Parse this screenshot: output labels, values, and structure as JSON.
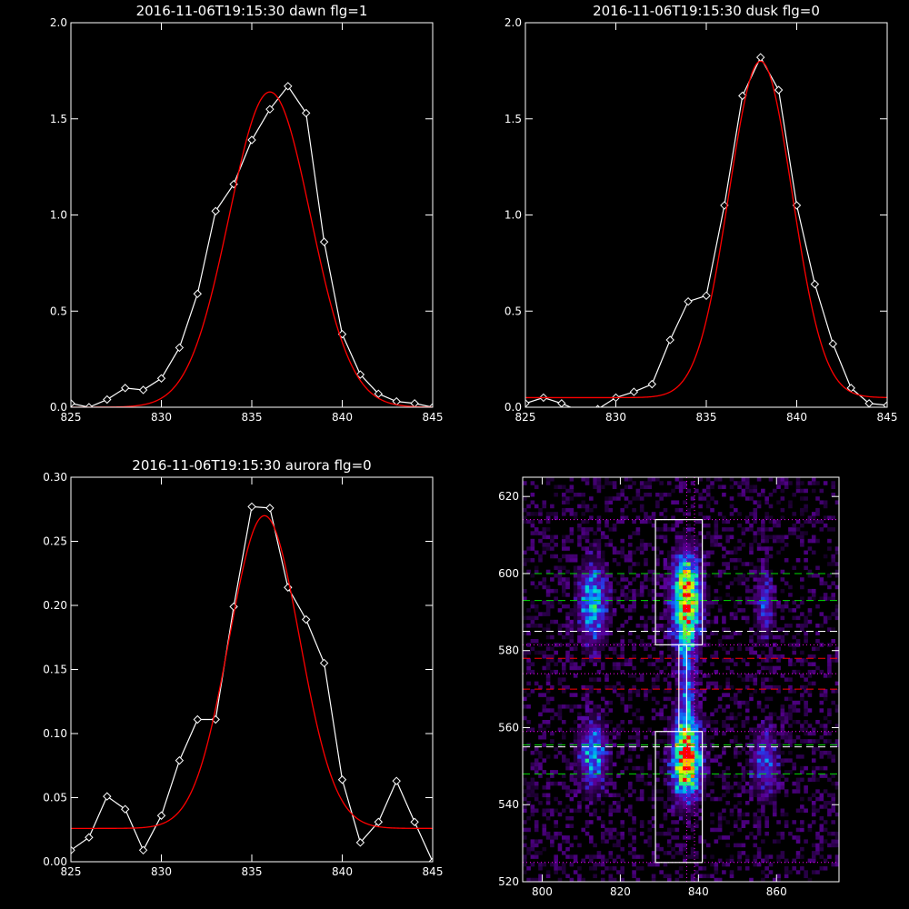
{
  "chart_data": [
    {
      "type": "line",
      "title": "2016-11-06T19:15:30 dawn flg=1",
      "xlim": [
        825,
        845
      ],
      "ylim": [
        0,
        2.0
      ],
      "xticks": [
        "825",
        "830",
        "835",
        "840",
        "845"
      ],
      "yticks": [
        "0.0",
        "0.5",
        "1.0",
        "1.5",
        "2.0"
      ],
      "series": [
        {
          "color": "#ffffff",
          "marker": "diamond",
          "x": [
            825,
            826,
            827,
            828,
            829,
            830,
            831,
            832,
            833,
            834,
            835,
            836,
            837,
            838,
            839,
            840,
            841,
            842,
            843,
            844,
            845
          ],
          "y": [
            0.02,
            0.0,
            0.04,
            0.1,
            0.09,
            0.15,
            0.31,
            0.59,
            1.02,
            1.16,
            1.39,
            1.55,
            1.67,
            1.53,
            0.86,
            0.38,
            0.17,
            0.07,
            0.03,
            0.02,
            0.0
          ]
        },
        {
          "color": "#ff0000",
          "fit": {
            "a": 1.64,
            "mu": 836.0,
            "sigma": 2.25,
            "c": 0.0
          }
        }
      ]
    },
    {
      "type": "line",
      "title": "2016-11-06T19:15:30 dusk flg=0",
      "xlim": [
        825,
        845
      ],
      "ylim": [
        0,
        2.0
      ],
      "xticks": [
        "825",
        "830",
        "835",
        "840",
        "845"
      ],
      "yticks": [
        "0.0",
        "0.5",
        "1.0",
        "1.5",
        "2.0"
      ],
      "series": [
        {
          "color": "#ffffff",
          "marker": "diamond",
          "x": [
            825,
            826,
            827,
            828,
            829,
            830,
            831,
            832,
            833,
            834,
            835,
            836,
            837,
            838,
            839,
            840,
            841,
            842,
            843,
            844,
            845
          ],
          "y": [
            0.02,
            0.05,
            0.02,
            -0.02,
            -0.01,
            0.05,
            0.08,
            0.12,
            0.35,
            0.55,
            0.58,
            1.05,
            1.62,
            1.82,
            1.65,
            1.05,
            0.64,
            0.33,
            0.1,
            0.02,
            0.01
          ]
        },
        {
          "color": "#ff0000",
          "fit": {
            "a": 1.75,
            "mu": 838.0,
            "sigma": 1.75,
            "c": 0.05
          }
        }
      ]
    },
    {
      "type": "line",
      "title": "2016-11-06T19:15:30 aurora flg=0",
      "xlim": [
        825,
        845
      ],
      "ylim": [
        0,
        0.3
      ],
      "xticks": [
        "825",
        "830",
        "835",
        "840",
        "845"
      ],
      "yticks": [
        "0.00",
        "0.05",
        "0.10",
        "0.15",
        "0.20",
        "0.25",
        "0.30"
      ],
      "series": [
        {
          "color": "#ffffff",
          "marker": "diamond",
          "x": [
            825,
            826,
            827,
            828,
            829,
            830,
            831,
            832,
            833,
            834,
            835,
            836,
            837,
            838,
            839,
            840,
            841,
            842,
            843,
            844,
            845
          ],
          "y": [
            0.009,
            0.019,
            0.051,
            0.041,
            0.009,
            0.036,
            0.079,
            0.111,
            0.111,
            0.199,
            0.277,
            0.276,
            0.214,
            0.189,
            0.155,
            0.064,
            0.015,
            0.031,
            0.063,
            0.031,
            0.0
          ]
        },
        {
          "color": "#ff0000",
          "fit": {
            "a": 0.244,
            "mu": 835.7,
            "sigma": 1.95,
            "c": 0.026
          }
        }
      ]
    },
    {
      "type": "heatmap",
      "title": "",
      "xlim": [
        795,
        876
      ],
      "ylim": [
        520,
        625
      ],
      "xticks": [
        "800",
        "820",
        "840",
        "860"
      ],
      "yticks": [
        "520",
        "540",
        "560",
        "580",
        "600",
        "620"
      ],
      "blobs": [
        {
          "x": 813,
          "y": 592,
          "w": 2.5,
          "h": 7,
          "amp": 0.55
        },
        {
          "x": 837,
          "y": 593,
          "w": 2.5,
          "h": 8,
          "amp": 1.0
        },
        {
          "x": 857,
          "y": 592,
          "w": 1.5,
          "h": 6,
          "amp": 0.35
        },
        {
          "x": 813,
          "y": 553,
          "w": 2.5,
          "h": 6,
          "amp": 0.5
        },
        {
          "x": 837,
          "y": 552,
          "w": 2.5,
          "h": 7,
          "amp": 1.0
        },
        {
          "x": 857,
          "y": 551,
          "w": 2.5,
          "h": 6,
          "amp": 0.35
        },
        {
          "x": 837,
          "y": 570,
          "w": 1.5,
          "h": 10,
          "amp": 0.35
        }
      ],
      "boxes": [
        {
          "x0": 829,
          "x1": 841,
          "y0": 581.5,
          "y1": 614,
          "color": "#ffffff"
        },
        {
          "x0": 829,
          "x1": 841,
          "y0": 525,
          "y1": 559,
          "color": "#ffffff"
        },
        {
          "x0": 835,
          "x1": 837,
          "y0": 559,
          "y1": 581.5,
          "color": "#ffffff"
        }
      ],
      "hlines": [
        {
          "y": 614,
          "color": "#ff00ff",
          "style": "dotted"
        },
        {
          "y": 600,
          "color": "#00dd00",
          "style": "dashed"
        },
        {
          "y": 593,
          "color": "#00dd00",
          "style": "dashed"
        },
        {
          "y": 585,
          "color": "#ffffff",
          "style": "dashed"
        },
        {
          "y": 581.5,
          "color": "#ff00ff",
          "style": "dotted"
        },
        {
          "y": 578,
          "color": "#ff0000",
          "style": "dashed"
        },
        {
          "y": 574,
          "color": "#ff00ff",
          "style": "dotted"
        },
        {
          "y": 570,
          "color": "#ff0000",
          "style": "dashed"
        },
        {
          "y": 559,
          "color": "#ff00ff",
          "style": "dotted"
        },
        {
          "y": 555,
          "color": "#ffffff",
          "style": "dashed"
        },
        {
          "y": 555.5,
          "color": "#00dd00",
          "style": "dashed"
        },
        {
          "y": 548,
          "color": "#00dd00",
          "style": "dashed"
        },
        {
          "y": 525,
          "color": "#ff00ff",
          "style": "dotted"
        }
      ],
      "vlines": [
        {
          "x": 837,
          "color": "#ff00ff",
          "style": "dotted"
        },
        {
          "x": 839,
          "color": "#ff00ff",
          "style": "dotted"
        }
      ]
    }
  ]
}
